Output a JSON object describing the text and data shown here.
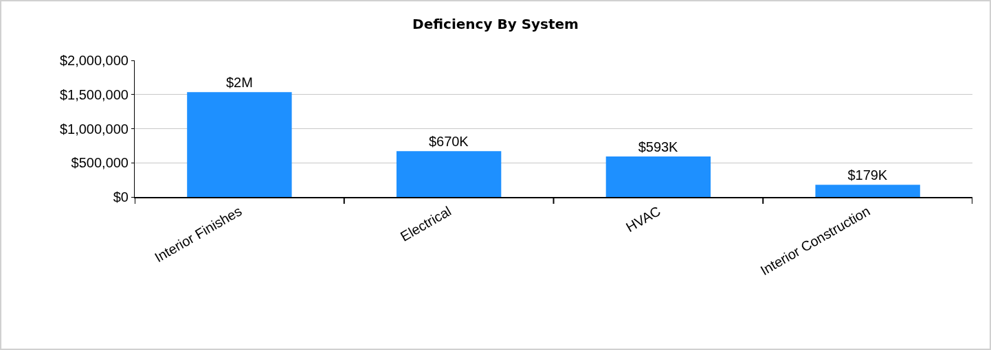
{
  "chart_data": {
    "type": "bar",
    "title": "Deficiency By System",
    "categories": [
      "Interior Finishes",
      "Electrical",
      "HVAC",
      "Interior Construction"
    ],
    "values": [
      1535000,
      670000,
      593000,
      179000
    ],
    "value_labels": [
      "$2M",
      "$670K",
      "$593K",
      "$179K"
    ],
    "color": "#1e90ff",
    "ylim": [
      0,
      2000000
    ],
    "yticks": [
      {
        "value": 0,
        "label": "$0"
      },
      {
        "value": 500000,
        "label": "$500,000"
      },
      {
        "value": 1000000,
        "label": "$1,000,000"
      },
      {
        "value": 1500000,
        "label": "$1,500,000"
      },
      {
        "value": 2000000,
        "label": "$2,000,000"
      }
    ],
    "grid": "y",
    "legend": false
  }
}
